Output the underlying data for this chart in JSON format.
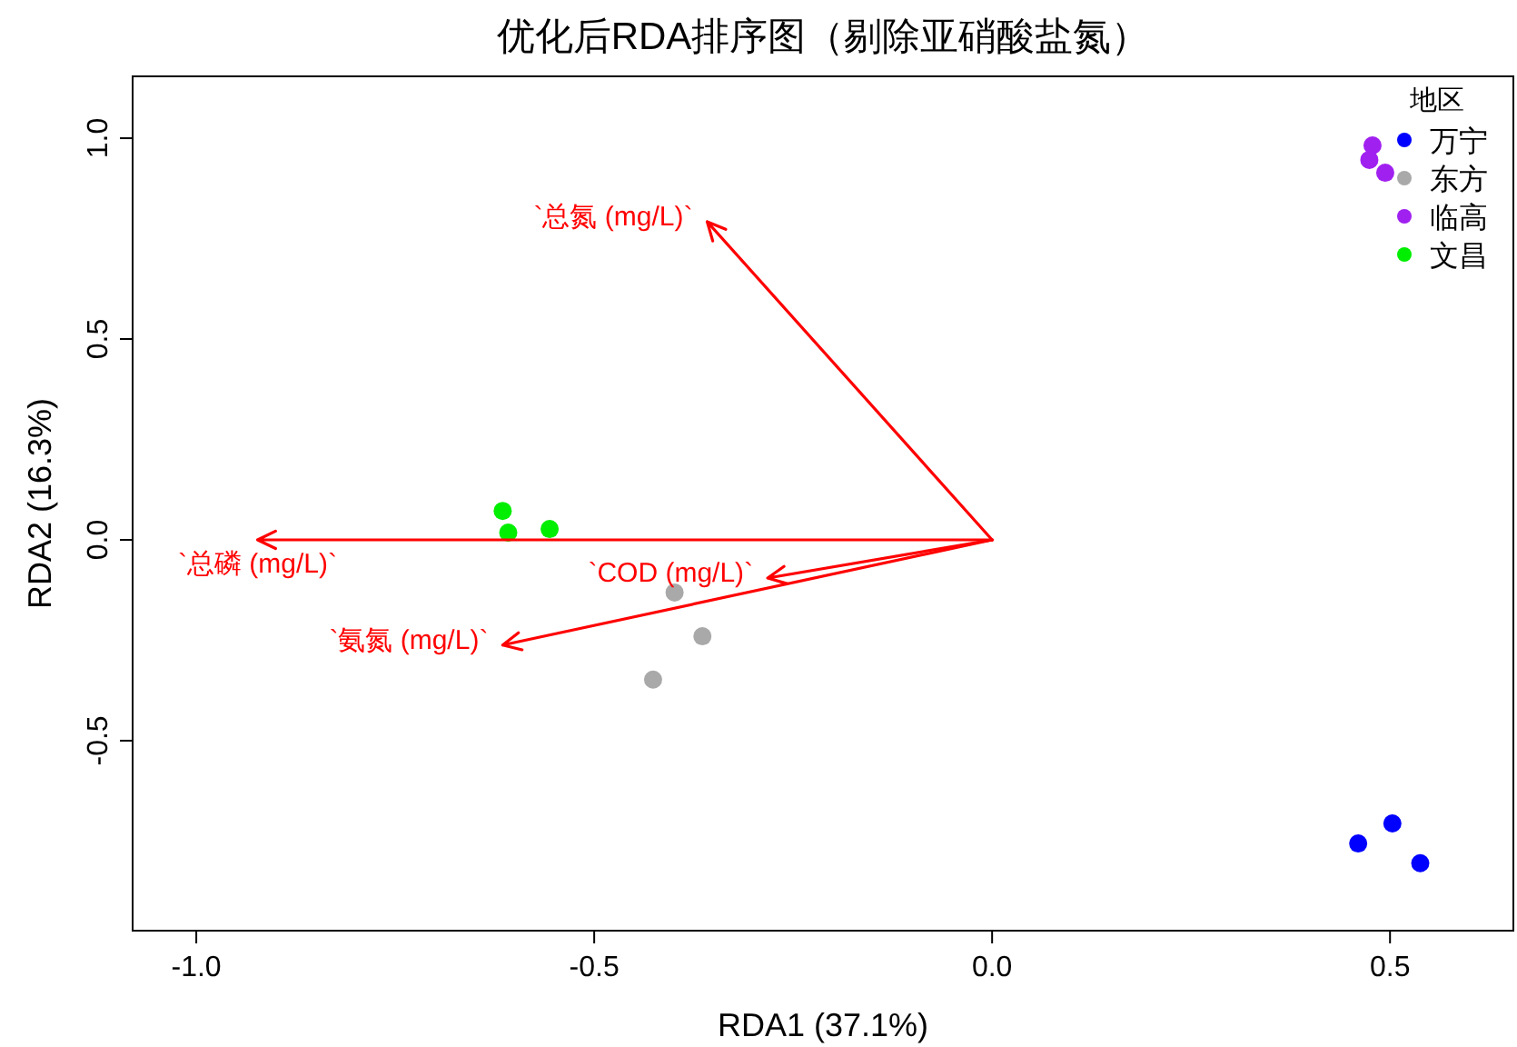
{
  "chart_data": {
    "type": "scatter",
    "title": "优化后RDA排序图（剔除亚硝酸盐氮）",
    "xlabel": "RDA1 (37.1%)",
    "ylabel": "RDA2 (16.3%)",
    "legend_title": "地区",
    "legend": "top right",
    "grid": false,
    "marker": "circle",
    "xlim": [
      -1.08,
      0.655
    ],
    "ylim": [
      -0.973,
      1.154
    ],
    "xticks": [
      {
        "value": -1,
        "label": "-1.0"
      },
      -0.5,
      {
        "value": 0,
        "label": "0.0"
      },
      0.5
    ],
    "yticks": [
      {
        "value": -0.5,
        "label": "-0.5"
      },
      {
        "value": 0,
        "label": "0.0"
      },
      0.5,
      {
        "value": 1,
        "label": "1.0"
      }
    ],
    "series": [
      {
        "name": "万宁",
        "color": "#0000ff",
        "x": [
          0.46,
          0.503,
          0.538
        ],
        "values": [
          -0.756,
          -0.706,
          -0.805
        ]
      },
      {
        "name": "东方",
        "color": "#a9a9a9",
        "x": [
          -0.399,
          -0.364,
          -0.426
        ],
        "values": [
          -0.131,
          -0.24,
          -0.348
        ]
      },
      {
        "name": "临高",
        "color": "#a020f0",
        "x": [
          0.478,
          0.474,
          0.494
        ],
        "values": [
          0.982,
          0.946,
          0.914
        ]
      },
      {
        "name": "文昌",
        "color": "#00ee00",
        "x": [
          -0.615,
          -0.608,
          -0.556
        ],
        "values": [
          0.072,
          0.018,
          0.027
        ]
      },
      {
        "type": "line",
        "marker": "none",
        "color": "#ff0000",
        "x": [
          0,
          -0.358
        ],
        "values": [
          0,
          0.792
        ]
      },
      {
        "type": "line",
        "marker": "none",
        "color": "#ff0000",
        "x": [
          0,
          -0.923
        ],
        "values": [
          0,
          0
        ]
      },
      {
        "type": "line",
        "marker": "none",
        "color": "#ff0000",
        "x": [
          0,
          -0.282
        ],
        "values": [
          0,
          -0.095
        ]
      },
      {
        "type": "line",
        "marker": "none",
        "color": "#ff0000",
        "x": [
          0,
          -0.615
        ],
        "values": [
          0,
          -0.262
        ]
      }
    ],
    "annotations": [
      {
        "text": "`总氮 (mg/L)`",
        "x": -0.358,
        "y": 0.792
      },
      {
        "text": "`总磷 (mg/L)`",
        "x": -0.923,
        "y": 0
      },
      {
        "text": "`COD (mg/L)`",
        "x": -0.282,
        "y": -0.095
      },
      {
        "text": "`氨氮 (mg/L)`",
        "x": -0.615,
        "y": -0.262
      }
    ]
  }
}
